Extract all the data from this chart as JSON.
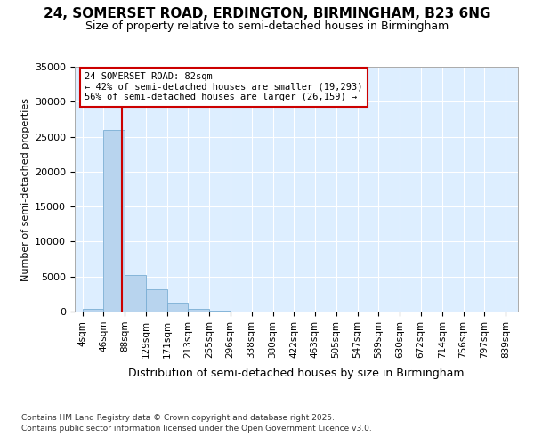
{
  "title_line1": "24, SOMERSET ROAD, ERDINGTON, BIRMINGHAM, B23 6NG",
  "title_line2": "Size of property relative to semi-detached houses in Birmingham",
  "xlabel": "Distribution of semi-detached houses by size in Birmingham",
  "ylabel": "Number of semi-detached properties",
  "annotation_line1": "24 SOMERSET ROAD: 82sqm",
  "annotation_line2": "← 42% of semi-detached houses are smaller (19,293)",
  "annotation_line3": "56% of semi-detached houses are larger (26,159) →",
  "property_size": 82,
  "bin_edges": [
    4,
    46,
    88,
    129,
    171,
    213,
    255,
    296,
    338,
    380,
    422,
    463,
    505,
    547,
    589,
    630,
    672,
    714,
    756,
    797,
    839
  ],
  "bar_heights": [
    400,
    26000,
    5200,
    3200,
    1200,
    400,
    100,
    0,
    0,
    0,
    0,
    0,
    0,
    0,
    0,
    0,
    0,
    0,
    0,
    0
  ],
  "bar_color": "#b8d4ee",
  "bar_edge_color": "#7aaed4",
  "vline_color": "#cc0000",
  "annotation_box_color": "#ffffff",
  "annotation_box_edge": "#cc0000",
  "background_color": "#ffffff",
  "plot_bg_color": "#ddeeff",
  "ylim": [
    0,
    35000
  ],
  "yticks": [
    0,
    5000,
    10000,
    15000,
    20000,
    25000,
    30000,
    35000
  ],
  "footer_line1": "Contains HM Land Registry data © Crown copyright and database right 2025.",
  "footer_line2": "Contains public sector information licensed under the Open Government Licence v3.0."
}
